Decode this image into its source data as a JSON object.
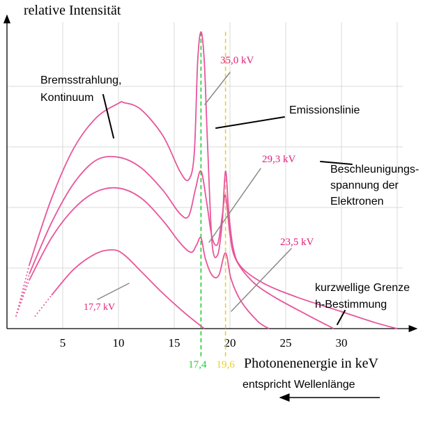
{
  "chart_data": {
    "type": "line",
    "ylabel": "relative Intensität",
    "xlabel": "Photonenenergie in keV",
    "xlabel_sub": "entspricht Wellenlänge",
    "xlim": [
      0,
      35
    ],
    "x_ticks": [
      "5",
      "10",
      "15",
      "20",
      "25",
      "30"
    ],
    "x_tick_values": [
      5,
      10,
      15,
      20,
      25,
      30
    ],
    "grid": true,
    "marker_lines": [
      {
        "x": 17.4,
        "label": "17,4",
        "color": "#22cc33"
      },
      {
        "x": 19.6,
        "label": "19,6",
        "color": "#e8d020"
      }
    ],
    "series": [
      {
        "name": "35,0 kV",
        "cutoff_keV": 35.0,
        "x": [
          0.8,
          2,
          4,
          6,
          8,
          10,
          10.5,
          12,
          14,
          15.5,
          16.3,
          16.8,
          17.1,
          17.4,
          17.7,
          18.0,
          18.4,
          18.9,
          19.3,
          19.6,
          19.9,
          20.3,
          21,
          23,
          26,
          30,
          33,
          35
        ],
        "y": [
          0.2,
          1.05,
          2.15,
          2.98,
          3.48,
          3.72,
          3.73,
          3.62,
          3.18,
          2.6,
          2.46,
          2.9,
          4.4,
          4.9,
          4.4,
          3.0,
          1.4,
          1.22,
          1.75,
          2.6,
          1.9,
          1.32,
          1.02,
          0.75,
          0.52,
          0.28,
          0.1,
          0.0
        ]
      },
      {
        "name": "29,3 kV",
        "cutoff_keV": 29.3,
        "x": [
          0.8,
          2,
          4,
          6,
          8,
          10,
          12,
          14,
          15.5,
          16.3,
          16.9,
          17.4,
          17.9,
          18.4,
          18.9,
          19.3,
          19.6,
          20.0,
          20.5,
          22,
          24,
          27,
          29.3
        ],
        "y": [
          0.2,
          0.9,
          1.75,
          2.4,
          2.78,
          2.83,
          2.66,
          2.28,
          1.9,
          1.86,
          2.3,
          2.6,
          2.1,
          1.5,
          1.4,
          1.85,
          2.2,
          1.55,
          1.15,
          0.78,
          0.52,
          0.22,
          0.0
        ]
      },
      {
        "name": "23,5 kV",
        "cutoff_keV": 23.5,
        "x": [
          0.8,
          2,
          4,
          6,
          8,
          10,
          12,
          14,
          15.5,
          16.5,
          17.0,
          17.4,
          17.8,
          18.4,
          19.0,
          19.6,
          20.1,
          21,
          22.5,
          23.5
        ],
        "y": [
          0.2,
          0.8,
          1.5,
          1.98,
          2.26,
          2.32,
          2.16,
          1.78,
          1.42,
          1.26,
          1.38,
          1.5,
          1.15,
          0.88,
          0.88,
          1.25,
          0.82,
          0.45,
          0.12,
          0.0
        ]
      },
      {
        "name": "17,7 kV",
        "cutoff_keV": 17.7,
        "x": [
          2.5,
          4,
          6,
          8,
          9.5,
          10.5,
          12,
          14,
          16,
          17.7
        ],
        "y": [
          0.2,
          0.55,
          0.98,
          1.24,
          1.3,
          1.22,
          0.95,
          0.58,
          0.25,
          0.0
        ]
      }
    ],
    "series_labels": [
      "35,0 kV",
      "29,3 kV",
      "23,5 kV",
      "17,7 kV"
    ],
    "annotations": [
      {
        "id": "brems",
        "lines": [
          "Bremsstrahlung,",
          "Kontinuum"
        ]
      },
      {
        "id": "emission",
        "lines": [
          "Emissionslinie"
        ]
      },
      {
        "id": "accel",
        "lines": [
          "Beschleunigungs-",
          "spannung der",
          "Elektronen"
        ]
      },
      {
        "id": "cutoff",
        "lines": [
          "kurzwellige Grenze",
          "h-Bestimmung"
        ]
      }
    ],
    "colors": {
      "curve": "#e8559a",
      "label": "#e0207a",
      "grid": "#d9d9d9",
      "axis": "#000000"
    }
  }
}
